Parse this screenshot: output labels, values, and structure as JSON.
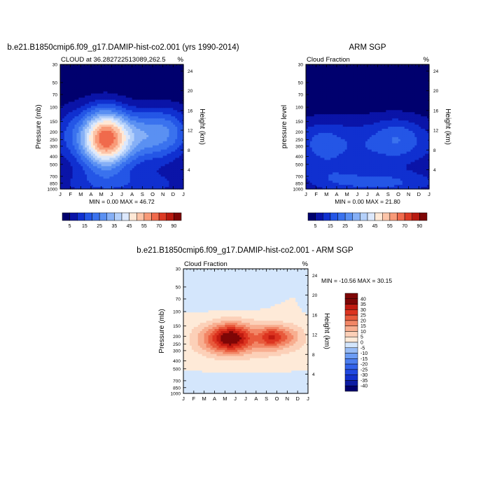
{
  "month_labels": [
    "J",
    "F",
    "M",
    "A",
    "M",
    "J",
    "J",
    "A",
    "S",
    "O",
    "N",
    "D",
    "J"
  ],
  "pressure_ticks": [
    "30",
    "50",
    "70",
    "100",
    "150",
    "200",
    "250",
    "300",
    "400",
    "500",
    "700",
    "850",
    "1000"
  ],
  "height_ticks": [
    "24",
    "20",
    "16",
    "12",
    "8",
    "4"
  ],
  "chart_data": [
    {
      "type": "heatmap",
      "title": "b.e21.B1850cmip6.f09_g17.DAMIP-hist-co2.001 (yrs 1990-2014)",
      "subtitle_left": "CLOUD at 36.282722513089,262.5",
      "subtitle_right": "%",
      "xlabel": "",
      "ylabel": "Pressure (mb)",
      "y2label": "Height (km)",
      "stats": "MIN =   0.00 MAX =  46.72",
      "min": 0.0,
      "max": 46.72,
      "colorbar_ticks": [
        "5",
        "15",
        "25",
        "35",
        "45",
        "55",
        "70",
        "90"
      ],
      "levels": [
        5,
        10,
        15,
        20,
        25,
        30,
        35,
        40,
        45,
        50,
        55,
        60,
        70,
        80,
        90
      ],
      "colors": [
        "#00006e",
        "#0a14a8",
        "#1030d0",
        "#2456e6",
        "#3a72ee",
        "#5a90f2",
        "#86b0f6",
        "#b4d0fa",
        "#dce8fc",
        "#ffe8d6",
        "#fcc4a8",
        "#f89a78",
        "#f06a4c",
        "#dc3a24",
        "#b81a10",
        "#7e0606"
      ],
      "features": [
        {
          "month": 4.5,
          "pressure": 235,
          "peak": 46.7,
          "sx": 1.6,
          "sz": 0.55
        },
        {
          "month": 4.0,
          "pressure": 260,
          "peak": 8.0,
          "sx": 1.5,
          "sz": 0.7
        },
        {
          "month": 8.0,
          "pressure": 215,
          "peak": 18.0,
          "sx": 2.4,
          "sz": 0.5
        },
        {
          "month": 10.5,
          "pressure": 190,
          "peak": 14.0,
          "sx": 2.0,
          "sz": 0.5
        },
        {
          "month": 1.0,
          "pressure": 200,
          "peak": 12.0,
          "sx": 1.8,
          "sz": 0.55
        },
        {
          "month": 6.0,
          "pressure": 400,
          "peak": 6.0,
          "sx": 5.0,
          "sz": 0.45
        },
        {
          "month": 6.0,
          "pressure": 900,
          "peak": 12.0,
          "sx": 6.0,
          "sz": 0.3
        }
      ]
    },
    {
      "type": "heatmap",
      "title": "ARM SGP",
      "subtitle_left": "Cloud Fraction",
      "subtitle_right": "%",
      "xlabel": "",
      "ylabel": "pressure level",
      "y2label": "Height (km)",
      "stats": "MIN =   0.00 MAX =  21.80",
      "min": 0.0,
      "max": 21.8,
      "colorbar_ticks": [
        "5",
        "15",
        "25",
        "35",
        "45",
        "55",
        "70",
        "90"
      ],
      "levels": [
        5,
        10,
        15,
        20,
        25,
        30,
        35,
        40,
        45,
        50,
        55,
        60,
        70,
        80,
        90
      ],
      "colors": [
        "#00006e",
        "#0a14a8",
        "#1030d0",
        "#2456e6",
        "#3a72ee",
        "#5a90f2",
        "#86b0f6",
        "#b4d0fa",
        "#dce8fc",
        "#ffe8d6",
        "#fcc4a8",
        "#f89a78",
        "#f06a4c",
        "#dc3a24",
        "#b81a10",
        "#7e0606"
      ],
      "features": [
        {
          "month": 6.0,
          "pressure": 290,
          "peak": 14.0,
          "sx": 7.0,
          "sz": 0.6
        },
        {
          "month": 9.0,
          "pressure": 230,
          "peak": 8.0,
          "sx": 1.6,
          "sz": 0.4
        },
        {
          "month": 1.5,
          "pressure": 260,
          "peak": 6.0,
          "sx": 1.5,
          "sz": 0.4
        },
        {
          "month": 7.0,
          "pressure": 860,
          "peak": 14.0,
          "sx": 5.0,
          "sz": 0.25
        },
        {
          "month": 2.0,
          "pressure": 600,
          "peak": 5.0,
          "sx": 2.0,
          "sz": 0.3
        }
      ]
    },
    {
      "type": "heatmap",
      "title": "b.e21.B1850cmip6.f09_g17.DAMIP-hist-co2.001 - ARM SGP",
      "subtitle_left": "Cloud Fraction",
      "subtitle_right": "%",
      "xlabel": "",
      "ylabel": "Pressure (mb)",
      "y2label": "Height (km)",
      "stats": "MIN = -10.56 MAX =  30.15",
      "min": -10.56,
      "max": 30.15,
      "colorbar_ticks": [
        "40",
        "35",
        "30",
        "25",
        "20",
        "15",
        "10",
        "5",
        "0",
        "-5",
        "-10",
        "-15",
        "-20",
        "-25",
        "-30",
        "-35",
        "-40"
      ],
      "levels": [
        -40,
        -35,
        -30,
        -25,
        -20,
        -15,
        -10,
        -5,
        0,
        5,
        10,
        15,
        20,
        25,
        30,
        35,
        40
      ],
      "colors": [
        "#00006e",
        "#0c1ca4",
        "#1230cc",
        "#2048e0",
        "#3262ea",
        "#4c7ef0",
        "#6c9cf4",
        "#98bcf6",
        "#d4e6fc",
        "#feead8",
        "#fcd0b8",
        "#f8ae90",
        "#f28666",
        "#e85a3c",
        "#dc3420",
        "#c01a10",
        "#7e0606",
        "#7e0606"
      ],
      "features": [
        {
          "month": 4.6,
          "pressure": 210,
          "peak": 30.0,
          "sx": 1.3,
          "sz": 0.28
        },
        {
          "month": 8.4,
          "pressure": 205,
          "peak": 18.0,
          "sx": 0.8,
          "sz": 0.22
        },
        {
          "month": 6.5,
          "pressure": 220,
          "peak": 12.0,
          "sx": 3.6,
          "sz": 0.36
        },
        {
          "month": 10.0,
          "pressure": 200,
          "peak": 10.0,
          "sx": 0.9,
          "sz": 0.2
        },
        {
          "month": 2.5,
          "pressure": 220,
          "peak": 7.0,
          "sx": 1.2,
          "sz": 0.3
        },
        {
          "month": 6.0,
          "pressure": 900,
          "peak": -3.0,
          "sx": 6.0,
          "sz": 0.25
        },
        {
          "month": 2.2,
          "pressure": 60,
          "peak": -4.0,
          "sx": 1.7,
          "sz": 0.3
        },
        {
          "month": 12.0,
          "pressure": 60,
          "peak": -4.0,
          "sx": 0.4,
          "sz": 0.3
        },
        {
          "month": 6.0,
          "pressure": 60,
          "peak": -4.0,
          "sx": 1.4,
          "sz": 0.3
        }
      ]
    }
  ]
}
